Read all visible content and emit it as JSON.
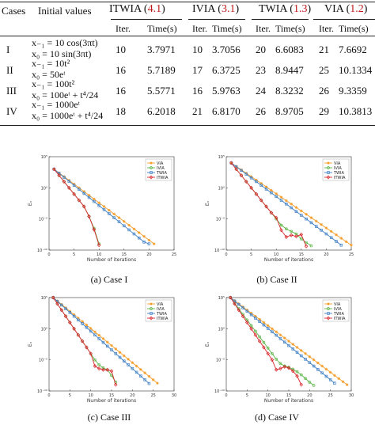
{
  "table": {
    "head_cases": "Cases",
    "head_initial": "Initial values",
    "methods": [
      {
        "name": "ITWIA (",
        "ref": "4.1",
        "close": ")"
      },
      {
        "name": "IVIA (",
        "ref": "3.1",
        "close": ")"
      },
      {
        "name": "TWIA (",
        "ref": "1.3",
        "close": ")"
      },
      {
        "name": "VIA (",
        "ref": "1.2",
        "close": ")"
      }
    ],
    "sub_iter": "Iter.",
    "sub_time": "Time(s)",
    "rows": [
      {
        "case": "I",
        "init1": "x₋₁ = 10 cos(3πt)",
        "init2": "x₀ = 10 sin(3πt)",
        "vals": [
          "10",
          "3.7971",
          "10",
          "3.7056",
          "20",
          "6.6083",
          "21",
          "7.6692"
        ]
      },
      {
        "case": "II",
        "init1": "x₋₁ = 10t²",
        "init2": "x₀ = 50eᵗ",
        "vals": [
          "16",
          "5.7189",
          "17",
          "6.3725",
          "23",
          "8.9447",
          "25",
          "10.1334"
        ]
      },
      {
        "case": "III",
        "init1": "x₋₁ = 100t²",
        "init2": "x₀ = 100eᵗ + t⁴/24",
        "vals": [
          "16",
          "5.5771",
          "16",
          "5.9763",
          "24",
          "8.3232",
          "26",
          "9.3359"
        ]
      },
      {
        "case": "IV",
        "init1": "x₋₁ = 1000eᵗ",
        "init2": "x₀ = 1000eᵗ + t⁴/24",
        "vals": [
          "18",
          "6.2018",
          "21",
          "6.8170",
          "26",
          "8.9705",
          "29",
          "10.3813"
        ]
      }
    ]
  },
  "panels": [
    {
      "caption": "(a) Case I"
    },
    {
      "caption": "(b) Case II"
    },
    {
      "caption": "(c) Case III"
    },
    {
      "caption": "(d) Case IV"
    }
  ],
  "colors": {
    "VIA": "#f59d2a",
    "IVIA": "#5db548",
    "TWIA": "#3e7fc3",
    "ITWIA": "#d8262b"
  },
  "chart_data": [
    {
      "type": "line",
      "xlabel": "Number of iterations",
      "ylabel": "Eₙ",
      "xlim": [
        0,
        25
      ],
      "xticks": [
        "0",
        "5",
        "10",
        "15",
        "20",
        "25"
      ],
      "ylog": true,
      "yticks": [
        "10⁵",
        "10⁰",
        "10⁻⁵",
        "10⁻¹⁰"
      ],
      "ylim_exp": [
        -10,
        5
      ],
      "legend": "top-right",
      "series": [
        {
          "name": "VIA",
          "x": [
            1,
            2,
            3,
            4,
            5,
            6,
            7,
            8,
            9,
            10,
            11,
            12,
            13,
            14,
            15,
            16,
            17,
            18,
            19,
            20,
            21
          ],
          "y_exp": [
            3.0,
            2.4,
            1.8,
            1.2,
            0.6,
            0.0,
            -0.6,
            -1.2,
            -1.8,
            -2.4,
            -3.0,
            -3.6,
            -4.2,
            -4.8,
            -5.4,
            -6.0,
            -6.6,
            -7.2,
            -7.8,
            -8.4,
            -9.0
          ]
        },
        {
          "name": "IVIA",
          "x": [
            1,
            2,
            3,
            4,
            5,
            6,
            7,
            8,
            9,
            10
          ],
          "y_exp": [
            3.0,
            2.0,
            1.0,
            0.0,
            -1.0,
            -2.0,
            -3.0,
            -4.6,
            -6.5,
            -9.0
          ]
        },
        {
          "name": "TWIA",
          "x": [
            1,
            2,
            3,
            4,
            5,
            6,
            7,
            8,
            9,
            10,
            11,
            12,
            13,
            14,
            15,
            16,
            17,
            18,
            19,
            20
          ],
          "y_exp": [
            3.0,
            2.35,
            1.7,
            1.05,
            0.4,
            -0.25,
            -0.9,
            -1.55,
            -2.2,
            -2.85,
            -3.5,
            -4.15,
            -4.8,
            -5.45,
            -6.1,
            -6.75,
            -7.4,
            -8.05,
            -8.7,
            -9.0
          ]
        },
        {
          "name": "ITWIA",
          "x": [
            1,
            2,
            3,
            4,
            5,
            6,
            7,
            8,
            9,
            10
          ],
          "y_exp": [
            3.0,
            2.0,
            1.0,
            0.0,
            -1.0,
            -2.0,
            -3.0,
            -4.6,
            -6.7,
            -9.2
          ]
        }
      ]
    },
    {
      "type": "line",
      "xlabel": "Number of iterations",
      "ylabel": "Eₙ",
      "xlim": [
        0,
        25
      ],
      "xticks": [
        "0",
        "5",
        "10",
        "15",
        "20",
        "25"
      ],
      "ylog": true,
      "yticks": [
        "10⁵",
        "10⁰",
        "10⁻⁵",
        "10⁻¹⁰"
      ],
      "ylim_exp": [
        -10,
        5
      ],
      "legend": "top-right",
      "series": [
        {
          "name": "VIA",
          "x": [
            1,
            2,
            3,
            4,
            5,
            6,
            7,
            8,
            9,
            10,
            11,
            12,
            13,
            14,
            15,
            16,
            17,
            18,
            19,
            20,
            21,
            22,
            23,
            24,
            25
          ],
          "y_exp": [
            4.0,
            3.45,
            2.9,
            2.35,
            1.8,
            1.25,
            0.7,
            0.15,
            -0.4,
            -0.95,
            -1.5,
            -2.05,
            -2.6,
            -3.15,
            -3.7,
            -4.25,
            -4.8,
            -5.35,
            -5.9,
            -6.45,
            -7.0,
            -7.55,
            -8.1,
            -8.65,
            -9.2
          ]
        },
        {
          "name": "IVIA",
          "x": [
            1,
            2,
            3,
            4,
            5,
            6,
            7,
            8,
            9,
            10,
            11,
            12,
            13,
            14,
            15,
            16,
            17
          ],
          "y_exp": [
            4.0,
            3.0,
            2.0,
            1.0,
            0.0,
            -1.0,
            -2.0,
            -3.0,
            -4.0,
            -5.0,
            -6.0,
            -6.6,
            -7.0,
            -7.4,
            -8.2,
            -8.8,
            -9.3
          ]
        },
        {
          "name": "TWIA",
          "x": [
            1,
            2,
            3,
            4,
            5,
            6,
            7,
            8,
            9,
            10,
            11,
            12,
            13,
            14,
            15,
            16,
            17,
            18,
            19,
            20,
            21,
            22,
            23
          ],
          "y_exp": [
            4.0,
            3.4,
            2.8,
            2.2,
            1.6,
            1.0,
            0.4,
            -0.2,
            -0.8,
            -1.4,
            -2.0,
            -2.6,
            -3.2,
            -3.8,
            -4.4,
            -5.0,
            -5.6,
            -6.2,
            -6.8,
            -7.4,
            -8.0,
            -8.6,
            -9.2
          ]
        },
        {
          "name": "ITWIA",
          "x": [
            1,
            2,
            3,
            4,
            5,
            6,
            7,
            8,
            9,
            10,
            11,
            12,
            13,
            14,
            15,
            16
          ],
          "y_exp": [
            4.0,
            3.0,
            2.0,
            1.0,
            0.0,
            -1.0,
            -2.0,
            -3.0,
            -4.0,
            -4.8,
            -6.8,
            -7.9,
            -7.6,
            -7.8,
            -7.5,
            -9.4
          ]
        }
      ]
    },
    {
      "type": "line",
      "xlabel": "Number of iterations",
      "ylabel": "Eₙ",
      "xlim": [
        0,
        30
      ],
      "xticks": [
        "0",
        "5",
        "10",
        "15",
        "20",
        "25",
        "30"
      ],
      "ylog": true,
      "yticks": [
        "10⁵",
        "10⁰",
        "10⁻⁵",
        "10⁻¹⁰"
      ],
      "ylim_exp": [
        -10,
        5
      ],
      "legend": "top-right",
      "series": [
        {
          "name": "VIA",
          "x": [
            1,
            2,
            3,
            4,
            5,
            6,
            7,
            8,
            9,
            10,
            11,
            12,
            13,
            14,
            15,
            16,
            17,
            18,
            19,
            20,
            21,
            22,
            23,
            24,
            25,
            26
          ],
          "y_exp": [
            5.0,
            4.45,
            3.9,
            3.35,
            2.8,
            2.25,
            1.7,
            1.15,
            0.6,
            0.05,
            -0.5,
            -1.05,
            -1.6,
            -2.15,
            -2.7,
            -3.25,
            -3.8,
            -4.35,
            -4.9,
            -5.45,
            -6.0,
            -6.55,
            -7.1,
            -7.65,
            -8.2,
            -8.75
          ]
        },
        {
          "name": "IVIA",
          "x": [
            1,
            2,
            3,
            4,
            5,
            6,
            7,
            8,
            9,
            10,
            11,
            12,
            13,
            14,
            15,
            16
          ],
          "y_exp": [
            5.0,
            4.0,
            3.0,
            2.0,
            1.0,
            0.0,
            -1.0,
            -2.0,
            -3.0,
            -4.0,
            -5.0,
            -5.8,
            -6.3,
            -6.6,
            -7.5,
            -8.6
          ]
        },
        {
          "name": "TWIA",
          "x": [
            1,
            2,
            3,
            4,
            5,
            6,
            7,
            8,
            9,
            10,
            11,
            12,
            13,
            14,
            15,
            16,
            17,
            18,
            19,
            20,
            21,
            22,
            23,
            24
          ],
          "y_exp": [
            5.0,
            4.4,
            3.8,
            3.2,
            2.6,
            2.0,
            1.4,
            0.8,
            0.2,
            -0.4,
            -1.0,
            -1.6,
            -2.2,
            -2.8,
            -3.4,
            -4.0,
            -4.6,
            -5.2,
            -5.8,
            -6.4,
            -7.0,
            -7.6,
            -8.2,
            -8.8
          ]
        },
        {
          "name": "ITWIA",
          "x": [
            1,
            2,
            3,
            4,
            5,
            6,
            7,
            8,
            9,
            10,
            11,
            12,
            13,
            14,
            15,
            16
          ],
          "y_exp": [
            5.0,
            4.0,
            3.0,
            2.0,
            1.0,
            0.0,
            -1.0,
            -2.0,
            -3.0,
            -4.0,
            -6.0,
            -6.4,
            -6.6,
            -6.6,
            -6.8,
            -9.0
          ]
        }
      ]
    },
    {
      "type": "line",
      "xlabel": "Number of iterations",
      "ylabel": "Eₙ",
      "xlim": [
        0,
        30
      ],
      "xticks": [
        "0",
        "5",
        "10",
        "15",
        "20",
        "25",
        "30"
      ],
      "ylog": true,
      "yticks": [
        "10⁵",
        "10⁰",
        "10⁻⁵",
        "10⁻¹⁰"
      ],
      "ylim_exp": [
        -10,
        5
      ],
      "legend": "top-right",
      "series": [
        {
          "name": "VIA",
          "x": [
            1,
            2,
            3,
            4,
            5,
            6,
            7,
            8,
            9,
            10,
            11,
            12,
            13,
            14,
            15,
            16,
            17,
            18,
            19,
            20,
            21,
            22,
            23,
            24,
            25,
            26,
            27,
            28,
            29
          ],
          "y_exp": [
            5.0,
            4.5,
            4.0,
            3.5,
            3.0,
            2.5,
            2.0,
            1.5,
            1.0,
            0.5,
            0.0,
            -0.5,
            -1.0,
            -1.5,
            -2.0,
            -2.5,
            -3.0,
            -3.5,
            -4.0,
            -4.5,
            -5.0,
            -5.5,
            -6.0,
            -6.5,
            -7.0,
            -7.5,
            -8.0,
            -8.5,
            -9.0
          ]
        },
        {
          "name": "IVIA",
          "x": [
            1,
            2,
            3,
            4,
            5,
            6,
            7,
            8,
            9,
            10,
            11,
            12,
            13,
            14,
            15,
            16,
            17,
            18,
            19,
            20,
            21
          ],
          "y_exp": [
            5.0,
            4.1,
            3.2,
            2.3,
            1.4,
            0.5,
            -0.4,
            -1.3,
            -2.2,
            -3.1,
            -4.0,
            -4.9,
            -5.6,
            -6.0,
            -6.2,
            -6.5,
            -6.9,
            -7.4,
            -8.0,
            -8.6,
            -9.1
          ]
        },
        {
          "name": "TWIA",
          "x": [
            1,
            2,
            3,
            4,
            5,
            6,
            7,
            8,
            9,
            10,
            11,
            12,
            13,
            14,
            15,
            16,
            17,
            18,
            19,
            20,
            21,
            22,
            23,
            24,
            25,
            26
          ],
          "y_exp": [
            5.0,
            4.45,
            3.9,
            3.35,
            2.8,
            2.25,
            1.7,
            1.15,
            0.6,
            0.05,
            -0.5,
            -1.05,
            -1.6,
            -2.15,
            -2.7,
            -3.25,
            -3.8,
            -4.35,
            -4.9,
            -5.45,
            -6.0,
            -6.55,
            -7.1,
            -7.65,
            -8.2,
            -8.75
          ]
        },
        {
          "name": "ITWIA",
          "x": [
            1,
            2,
            3,
            4,
            5,
            6,
            7,
            8,
            9,
            10,
            11,
            12,
            13,
            14,
            15,
            16,
            17,
            18
          ],
          "y_exp": [
            5.0,
            4.0,
            3.0,
            2.0,
            1.0,
            0.0,
            -1.0,
            -2.0,
            -3.0,
            -4.0,
            -5.0,
            -6.6,
            -6.4,
            -6.1,
            -6.3,
            -6.8,
            -7.6,
            -9.0
          ]
        }
      ]
    }
  ]
}
